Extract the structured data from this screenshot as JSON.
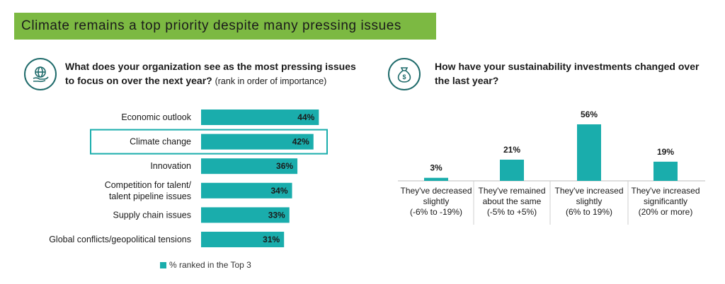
{
  "banner": {
    "title": "Climate remains a top priority despite many pressing issues"
  },
  "left": {
    "question": "What does your organization see as the most pressing issues to focus on over the next year?",
    "note": "(rank in order of importance)",
    "legend": "% ranked in the Top 3"
  },
  "right": {
    "question": "How have your sustainability investments changed over the last year?"
  },
  "colors": {
    "bar": "#1aadac",
    "highlight_border": "#1aadac",
    "banner": "#7cb942",
    "icon": "#1f6b6b"
  },
  "icons": {
    "left": "globe-in-hand-icon",
    "right": "money-bag-icon"
  },
  "chart_data": [
    {
      "type": "bar",
      "orientation": "horizontal",
      "categories": [
        [
          "Economic outlook"
        ],
        [
          "Climate change"
        ],
        [
          "Innovation"
        ],
        [
          "Competition for talent/",
          "talent pipeline issues"
        ],
        [
          "Supply chain issues"
        ],
        [
          "Global conflicts/geopolitical tensions"
        ]
      ],
      "values": [
        44,
        42,
        36,
        34,
        33,
        31
      ],
      "labels": [
        "44%",
        "42%",
        "36%",
        "34%",
        "33%",
        "31%"
      ],
      "highlight": "Climate change",
      "series": [
        {
          "name": "% ranked in the Top 3",
          "values": [
            44,
            42,
            36,
            34,
            33,
            31
          ]
        }
      ],
      "xlim": [
        0,
        100
      ]
    },
    {
      "type": "bar",
      "orientation": "vertical",
      "categories": [
        [
          "They've decreased",
          "slightly",
          "(-6% to -19%)"
        ],
        [
          "They've remained",
          "about the same",
          "(-5% to +5%)"
        ],
        [
          "They've increased",
          "slightly",
          "(6% to 19%)"
        ],
        [
          "They've increased",
          "significantly",
          "(20% or more)"
        ]
      ],
      "values": [
        3,
        21,
        56,
        19
      ],
      "labels": [
        "3%",
        "21%",
        "56%",
        "19%"
      ],
      "ylim": [
        0,
        56
      ]
    }
  ]
}
